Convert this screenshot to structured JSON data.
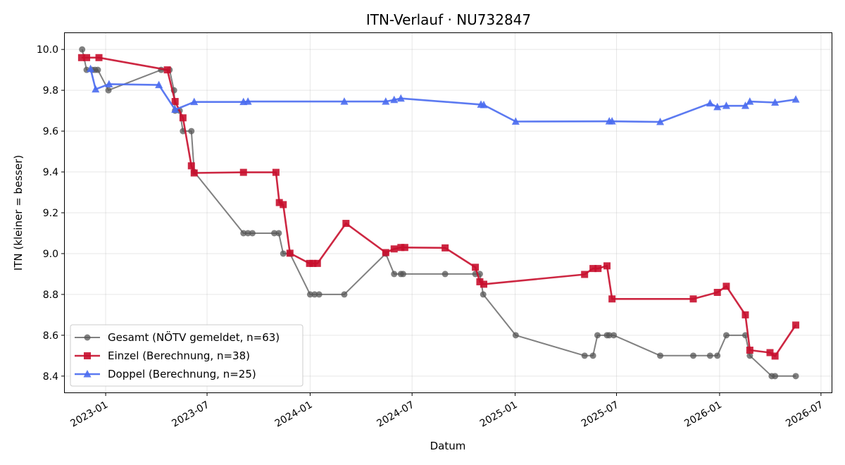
{
  "chart_data": {
    "type": "line",
    "title": "ITN-Verlauf · NU732847",
    "xlabel": "Datum",
    "ylabel": "ITN  (kleiner = besser)",
    "xlim": [
      "2022-10-20",
      "2026-07-20"
    ],
    "ylim": [
      8.32,
      10.08
    ],
    "x_ticks": [
      "2023-01-01",
      "2023-07-01",
      "2024-01-01",
      "2024-07-01",
      "2025-01-01",
      "2025-07-01",
      "2026-01-01",
      "2026-07-01"
    ],
    "x_tick_labels": [
      "2023-01",
      "2023-07",
      "2024-01",
      "2024-07",
      "2025-01",
      "2025-07",
      "2026-01",
      "2026-07"
    ],
    "y_ticks": [
      8.4,
      8.6,
      8.8,
      9.0,
      9.2,
      9.4,
      9.6,
      9.8,
      10.0
    ],
    "y_tick_labels": [
      "8.4",
      "8.6",
      "8.8",
      "9.0",
      "9.2",
      "9.4",
      "9.6",
      "9.8",
      "10.0"
    ],
    "grid": true,
    "legend_position": "bottom-left",
    "series": [
      {
        "name": "Gesamt (NÖTV gemeldet, n=63)",
        "color": "#555555",
        "marker": "circle",
        "points": [
          {
            "x": "2022-11-20",
            "y": 10.0
          },
          {
            "x": "2022-11-28",
            "y": 9.9
          },
          {
            "x": "2022-12-18",
            "y": 9.9
          },
          {
            "x": "2022-12-08",
            "y": 9.9
          },
          {
            "x": "2022-12-13",
            "y": 9.9
          },
          {
            "x": "2023-01-06",
            "y": 9.8
          },
          {
            "x": "2023-04-10",
            "y": 9.9
          },
          {
            "x": "2023-04-25",
            "y": 9.9
          },
          {
            "x": "2023-05-03",
            "y": 9.8
          },
          {
            "x": "2023-05-05",
            "y": 9.7
          },
          {
            "x": "2023-05-13",
            "y": 9.7
          },
          {
            "x": "2023-05-19",
            "y": 9.6
          },
          {
            "x": "2023-06-03",
            "y": 9.6
          },
          {
            "x": "2023-06-08",
            "y": 9.4
          },
          {
            "x": "2023-09-04",
            "y": 9.1
          },
          {
            "x": "2023-09-12",
            "y": 9.1
          },
          {
            "x": "2023-09-20",
            "y": 9.1
          },
          {
            "x": "2023-10-29",
            "y": 9.1
          },
          {
            "x": "2023-11-06",
            "y": 9.1
          },
          {
            "x": "2023-11-14",
            "y": 9.0
          },
          {
            "x": "2023-11-26",
            "y": 9.0
          },
          {
            "x": "2024-01-01",
            "y": 8.8
          },
          {
            "x": "2024-01-09",
            "y": 8.8
          },
          {
            "x": "2024-01-17",
            "y": 8.8
          },
          {
            "x": "2024-03-02",
            "y": 8.8
          },
          {
            "x": "2024-05-15",
            "y": 9.0
          },
          {
            "x": "2024-05-30",
            "y": 8.9
          },
          {
            "x": "2024-06-11",
            "y": 8.9
          },
          {
            "x": "2024-06-15",
            "y": 8.9
          },
          {
            "x": "2024-08-29",
            "y": 8.9
          },
          {
            "x": "2024-10-22",
            "y": 8.9
          },
          {
            "x": "2024-10-30",
            "y": 8.9
          },
          {
            "x": "2024-11-05",
            "y": 8.8
          },
          {
            "x": "2025-01-02",
            "y": 8.6
          },
          {
            "x": "2025-05-05",
            "y": 8.5
          },
          {
            "x": "2025-05-20",
            "y": 8.5
          },
          {
            "x": "2025-05-28",
            "y": 8.6
          },
          {
            "x": "2025-06-14",
            "y": 8.6
          },
          {
            "x": "2025-06-18",
            "y": 8.6
          },
          {
            "x": "2025-06-26",
            "y": 8.6
          },
          {
            "x": "2025-09-17",
            "y": 8.5
          },
          {
            "x": "2025-11-15",
            "y": 8.5
          },
          {
            "x": "2025-12-15",
            "y": 8.5
          },
          {
            "x": "2025-12-28",
            "y": 8.5
          },
          {
            "x": "2026-01-13",
            "y": 8.6
          },
          {
            "x": "2026-02-16",
            "y": 8.6
          },
          {
            "x": "2026-02-24",
            "y": 8.5
          },
          {
            "x": "2026-04-04",
            "y": 8.4
          },
          {
            "x": "2026-04-10",
            "y": 8.4
          },
          {
            "x": "2026-05-17",
            "y": 8.4
          }
        ]
      },
      {
        "name": "Einzel (Berechnung, n=38)",
        "color": "#c8102e",
        "marker": "square",
        "points": [
          {
            "x": "2022-11-19",
            "y": 9.96
          },
          {
            "x": "2022-11-28",
            "y": 9.96
          },
          {
            "x": "2022-12-20",
            "y": 9.96
          },
          {
            "x": "2023-04-21",
            "y": 9.9
          },
          {
            "x": "2023-05-05",
            "y": 9.745
          },
          {
            "x": "2023-05-19",
            "y": 9.665
          },
          {
            "x": "2023-06-03",
            "y": 9.43
          },
          {
            "x": "2023-06-08",
            "y": 9.395
          },
          {
            "x": "2023-09-04",
            "y": 9.398
          },
          {
            "x": "2023-11-01",
            "y": 9.398
          },
          {
            "x": "2023-11-07",
            "y": 9.25
          },
          {
            "x": "2023-11-14",
            "y": 9.24
          },
          {
            "x": "2023-11-26",
            "y": 9.002
          },
          {
            "x": "2023-12-31",
            "y": 8.952
          },
          {
            "x": "2024-01-06",
            "y": 8.952
          },
          {
            "x": "2024-01-14",
            "y": 8.952
          },
          {
            "x": "2024-03-05",
            "y": 9.148
          },
          {
            "x": "2024-05-15",
            "y": 9.005
          },
          {
            "x": "2024-05-30",
            "y": 9.023
          },
          {
            "x": "2024-06-11",
            "y": 9.03
          },
          {
            "x": "2024-06-18",
            "y": 9.03
          },
          {
            "x": "2024-08-29",
            "y": 9.028
          },
          {
            "x": "2024-10-22",
            "y": 8.933
          },
          {
            "x": "2024-10-30",
            "y": 8.862
          },
          {
            "x": "2024-11-06",
            "y": 8.85
          },
          {
            "x": "2025-05-05",
            "y": 8.898
          },
          {
            "x": "2025-05-20",
            "y": 8.927
          },
          {
            "x": "2025-05-29",
            "y": 8.927
          },
          {
            "x": "2025-06-14",
            "y": 8.94
          },
          {
            "x": "2025-06-23",
            "y": 8.778
          },
          {
            "x": "2025-11-15",
            "y": 8.778
          },
          {
            "x": "2025-12-28",
            "y": 8.81
          },
          {
            "x": "2026-01-13",
            "y": 8.84
          },
          {
            "x": "2026-02-16",
            "y": 8.7
          },
          {
            "x": "2026-02-24",
            "y": 8.527
          },
          {
            "x": "2026-04-01",
            "y": 8.515
          },
          {
            "x": "2026-04-10",
            "y": 8.498
          },
          {
            "x": "2026-05-17",
            "y": 8.65
          }
        ]
      },
      {
        "name": "Doppel (Berechnung, n=25)",
        "color": "#4a6cf0",
        "marker": "triangle",
        "points": [
          {
            "x": "2022-12-05",
            "y": 9.905
          },
          {
            "x": "2022-12-14",
            "y": 9.805
          },
          {
            "x": "2023-01-07",
            "y": 9.83
          },
          {
            "x": "2023-04-06",
            "y": 9.826
          },
          {
            "x": "2023-05-05",
            "y": 9.705
          },
          {
            "x": "2023-06-08",
            "y": 9.743
          },
          {
            "x": "2023-09-04",
            "y": 9.743
          },
          {
            "x": "2023-09-12",
            "y": 9.745
          },
          {
            "x": "2024-03-02",
            "y": 9.745
          },
          {
            "x": "2024-05-15",
            "y": 9.745
          },
          {
            "x": "2024-05-30",
            "y": 9.753
          },
          {
            "x": "2024-06-11",
            "y": 9.76
          },
          {
            "x": "2024-11-01",
            "y": 9.73
          },
          {
            "x": "2024-11-06",
            "y": 9.728
          },
          {
            "x": "2025-01-02",
            "y": 9.647
          },
          {
            "x": "2025-06-18",
            "y": 9.648
          },
          {
            "x": "2025-06-23",
            "y": 9.648
          },
          {
            "x": "2025-09-17",
            "y": 9.645
          },
          {
            "x": "2025-12-15",
            "y": 9.736
          },
          {
            "x": "2025-12-28",
            "y": 9.718
          },
          {
            "x": "2026-01-13",
            "y": 9.724
          },
          {
            "x": "2026-02-16",
            "y": 9.724
          },
          {
            "x": "2026-02-24",
            "y": 9.745
          },
          {
            "x": "2026-04-10",
            "y": 9.74
          },
          {
            "x": "2026-05-17",
            "y": 9.755
          }
        ]
      }
    ]
  }
}
